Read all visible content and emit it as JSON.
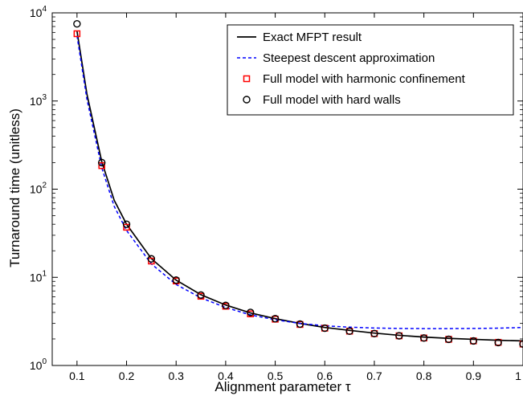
{
  "chart_data": {
    "type": "line",
    "title": "",
    "xlabel": "Alignment parameter τ",
    "ylabel": "Turnaround time (unitless)",
    "xlim": [
      0.05,
      1.0
    ],
    "ylim": [
      1,
      10000
    ],
    "yscale": "log",
    "grid": false,
    "legend_position": "top-right",
    "x_ticks": [
      0.1,
      0.2,
      0.3,
      0.4,
      0.5,
      0.6,
      0.7,
      0.8,
      0.9,
      1
    ],
    "x_tick_labels": [
      "0.1",
      "0.2",
      "0.3",
      "0.4",
      "0.5",
      "0.6",
      "0.7",
      "0.8",
      "0.9",
      "1"
    ],
    "y_ticks": [
      1,
      10,
      100,
      1000,
      10000
    ],
    "y_tick_labels": [
      {
        "base": "10",
        "exp": "0"
      },
      {
        "base": "10",
        "exp": "1"
      },
      {
        "base": "10",
        "exp": "2"
      },
      {
        "base": "10",
        "exp": "3"
      },
      {
        "base": "10",
        "exp": "4"
      }
    ],
    "series": [
      {
        "name": "Exact MFPT result",
        "style": "solid-line",
        "color": "#000000",
        "x": [
          0.1,
          0.12,
          0.15,
          0.175,
          0.2,
          0.25,
          0.3,
          0.35,
          0.4,
          0.45,
          0.5,
          0.55,
          0.6,
          0.65,
          0.7,
          0.75,
          0.8,
          0.85,
          0.9,
          0.95,
          1.0
        ],
        "y": [
          6200,
          1200,
          205,
          75,
          40,
          16.3,
          9.3,
          6.35,
          4.85,
          3.95,
          3.4,
          3.0,
          2.7,
          2.5,
          2.33,
          2.2,
          2.1,
          2.03,
          1.98,
          1.93,
          1.9
        ]
      },
      {
        "name": "Steepest descent approximation",
        "style": "dashed-line",
        "color": "#0000ff",
        "x": [
          0.1,
          0.12,
          0.15,
          0.175,
          0.2,
          0.25,
          0.3,
          0.35,
          0.4,
          0.45,
          0.5,
          0.55,
          0.6,
          0.65,
          0.7,
          0.75,
          0.8,
          0.85,
          0.9,
          0.95,
          1.0
        ],
        "y": [
          5500,
          1050,
          175,
          64,
          34,
          14.2,
          8.3,
          5.85,
          4.55,
          3.75,
          3.3,
          3.0,
          2.82,
          2.72,
          2.66,
          2.63,
          2.62,
          2.62,
          2.63,
          2.65,
          2.7
        ]
      },
      {
        "name": "Full model with harmonic confinement",
        "style": "square-markers",
        "color": "#ff0000",
        "x": [
          0.1,
          0.15,
          0.2,
          0.25,
          0.3,
          0.35,
          0.4,
          0.45,
          0.5,
          0.55,
          0.6,
          0.65,
          0.7,
          0.75,
          0.8,
          0.85,
          0.9,
          0.95,
          1.0
        ],
        "y": [
          5800,
          185,
          37,
          15.3,
          9.1,
          6.1,
          4.7,
          3.85,
          3.35,
          2.92,
          2.65,
          2.45,
          2.3,
          2.17,
          2.05,
          1.98,
          1.9,
          1.83,
          1.75
        ]
      },
      {
        "name": "Full model with hard walls",
        "style": "circle-markers",
        "color": "#000000",
        "x": [
          0.1,
          0.15,
          0.2,
          0.25,
          0.3,
          0.35,
          0.4,
          0.45,
          0.5,
          0.55,
          0.6,
          0.65,
          0.7,
          0.75,
          0.8,
          0.85,
          0.9,
          0.95,
          1.0
        ],
        "y": [
          7500,
          200,
          40,
          16.2,
          9.3,
          6.3,
          4.8,
          4.0,
          3.4,
          2.95,
          2.65,
          2.45,
          2.3,
          2.17,
          2.05,
          1.98,
          1.9,
          1.82,
          1.75
        ]
      }
    ]
  }
}
